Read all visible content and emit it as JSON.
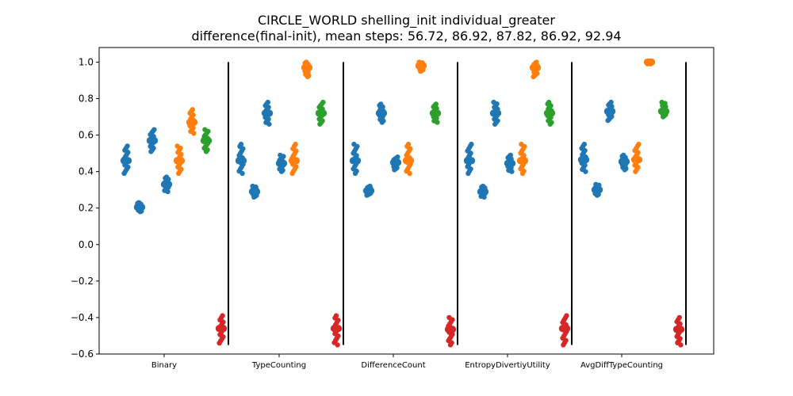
{
  "chart_data": {
    "type": "scatter",
    "title": "CIRCLE_WORLD shelling_init individual_greater",
    "subtitle": "difference(final-init), mean steps: 56.72, 86.92, 87.82, 86.92, 92.94",
    "xlabel": "",
    "ylabel": "",
    "ylim": [
      -0.6,
      1.08
    ],
    "yticks": [
      -0.6,
      -0.4,
      -0.2,
      0.0,
      0.2,
      0.4,
      0.6,
      0.8,
      1.0
    ],
    "ytick_labels": [
      "−0.6",
      "−0.4",
      "−0.2",
      "0.0",
      "0.2",
      "0.4",
      "0.6",
      "0.8",
      "1.0"
    ],
    "grid": false,
    "colors": {
      "blue": "#1f77b4",
      "orange": "#ff7f0e",
      "green": "#2ca02c",
      "red": "#d62728"
    },
    "groups": [
      {
        "label": "Binary",
        "strips": [
          {
            "color": "blue",
            "center": 0.46,
            "min": 0.39,
            "max": 0.54
          },
          {
            "color": "blue",
            "center": 0.205,
            "min": 0.18,
            "max": 0.23
          },
          {
            "color": "blue",
            "center": 0.57,
            "min": 0.51,
            "max": 0.63
          },
          {
            "color": "blue",
            "center": 0.33,
            "min": 0.29,
            "max": 0.37
          },
          {
            "color": "orange",
            "center": 0.46,
            "min": 0.39,
            "max": 0.54
          },
          {
            "color": "orange",
            "center": 0.67,
            "min": 0.61,
            "max": 0.74
          },
          {
            "color": "green",
            "center": 0.57,
            "min": 0.51,
            "max": 0.63
          },
          {
            "color": "red",
            "center": -0.46,
            "min": -0.54,
            "max": -0.39
          }
        ]
      },
      {
        "label": "TypeCounting",
        "strips": [
          {
            "color": "blue",
            "center": 0.46,
            "min": 0.39,
            "max": 0.55
          },
          {
            "color": "blue",
            "center": 0.29,
            "min": 0.26,
            "max": 0.32
          },
          {
            "color": "blue",
            "center": 0.72,
            "min": 0.66,
            "max": 0.78
          },
          {
            "color": "blue",
            "center": 0.445,
            "min": 0.4,
            "max": 0.49
          },
          {
            "color": "orange",
            "center": 0.46,
            "min": 0.39,
            "max": 0.55
          },
          {
            "color": "orange",
            "center": 0.97,
            "min": 0.92,
            "max": 1.0
          },
          {
            "color": "green",
            "center": 0.72,
            "min": 0.66,
            "max": 0.78
          },
          {
            "color": "red",
            "center": -0.46,
            "min": -0.55,
            "max": -0.39
          }
        ]
      },
      {
        "label": "DifferenceCount",
        "strips": [
          {
            "color": "blue",
            "center": 0.46,
            "min": 0.39,
            "max": 0.55
          },
          {
            "color": "blue",
            "center": 0.295,
            "min": 0.27,
            "max": 0.32
          },
          {
            "color": "blue",
            "center": 0.72,
            "min": 0.67,
            "max": 0.77
          },
          {
            "color": "blue",
            "center": 0.45,
            "min": 0.41,
            "max": 0.48
          },
          {
            "color": "orange",
            "center": 0.46,
            "min": 0.39,
            "max": 0.55
          },
          {
            "color": "orange",
            "center": 0.98,
            "min": 0.95,
            "max": 1.0
          },
          {
            "color": "green",
            "center": 0.72,
            "min": 0.67,
            "max": 0.77
          },
          {
            "color": "red",
            "center": -0.465,
            "min": -0.55,
            "max": -0.4
          }
        ]
      },
      {
        "label": "EntropyDivertiyUtility",
        "strips": [
          {
            "color": "blue",
            "center": 0.46,
            "min": 0.39,
            "max": 0.55
          },
          {
            "color": "blue",
            "center": 0.29,
            "min": 0.26,
            "max": 0.32
          },
          {
            "color": "blue",
            "center": 0.72,
            "min": 0.66,
            "max": 0.78
          },
          {
            "color": "blue",
            "center": 0.445,
            "min": 0.4,
            "max": 0.49
          },
          {
            "color": "orange",
            "center": 0.46,
            "min": 0.39,
            "max": 0.55
          },
          {
            "color": "orange",
            "center": 0.97,
            "min": 0.92,
            "max": 1.0
          },
          {
            "color": "green",
            "center": 0.72,
            "min": 0.66,
            "max": 0.78
          },
          {
            "color": "red",
            "center": -0.46,
            "min": -0.55,
            "max": -0.39
          }
        ]
      },
      {
        "label": "AvgDiffTypeCounting",
        "strips": [
          {
            "color": "blue",
            "center": 0.465,
            "min": 0.4,
            "max": 0.55
          },
          {
            "color": "blue",
            "center": 0.3,
            "min": 0.27,
            "max": 0.33
          },
          {
            "color": "blue",
            "center": 0.73,
            "min": 0.68,
            "max": 0.78
          },
          {
            "color": "blue",
            "center": 0.455,
            "min": 0.41,
            "max": 0.49
          },
          {
            "color": "orange",
            "center": 0.465,
            "min": 0.4,
            "max": 0.55
          },
          {
            "color": "orange",
            "center": 1.0,
            "min": 0.99,
            "max": 1.0
          },
          {
            "color": "green",
            "center": 0.73,
            "min": 0.7,
            "max": 0.78
          },
          {
            "color": "red",
            "center": -0.465,
            "min": -0.55,
            "max": -0.4
          }
        ]
      }
    ]
  }
}
